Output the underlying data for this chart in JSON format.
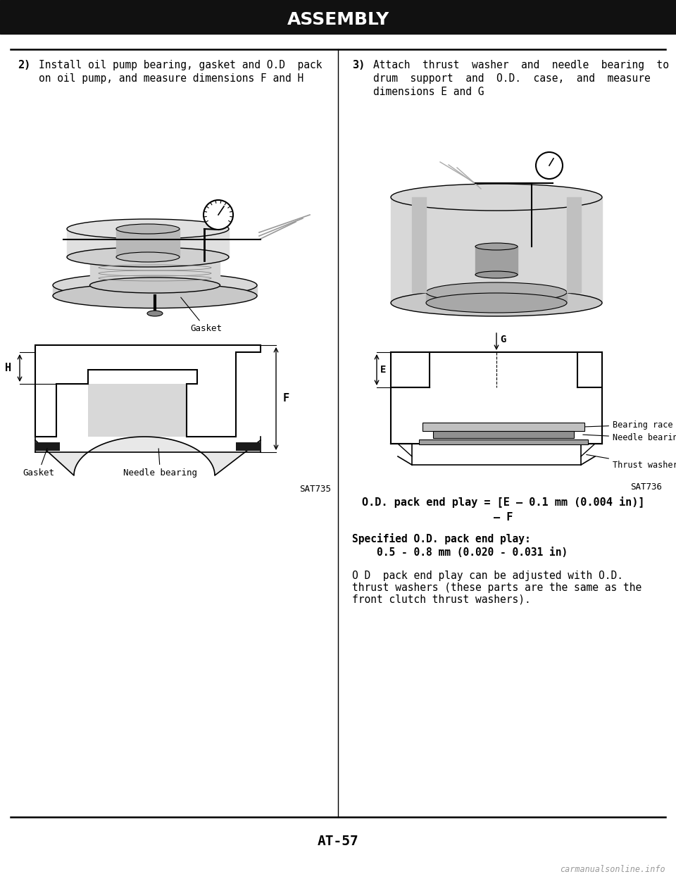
{
  "title": "ASSEMBLY",
  "page_number": "AT-57",
  "watermark": "carmanualsonline.info",
  "bg_color": "#ffffff",
  "header_bar_color": "#111111",
  "divider_color": "#000000",
  "text_color": "#000000",
  "left_step_number": "2)",
  "left_step_text_line1": "Install oil pump bearing, gasket and O.D  pack",
  "left_step_text_line2": "on oil pump, and measure dimensions F and H",
  "left_label_gasket": "Gasket",
  "left_label_needle": "Needle bearing",
  "left_label_h": "H",
  "left_label_f": "F",
  "left_diagram_ref": "SAT735",
  "right_step_number": "3)",
  "right_step_text_line1": "Attach  thrust  washer  and  needle  bearing  to",
  "right_step_text_line2": "drum  support  and  O.D.  case,  and  measure",
  "right_step_text_line3": "dimensions E and G",
  "right_label_g": "G",
  "right_label_e": "E",
  "right_label_bearing_race": "Bearing race",
  "right_label_needle_bearing": "Needle bearing",
  "right_label_thrust": "Thrust washer",
  "right_diagram_ref": "SAT736",
  "formula_line1": "O.D. pack end play = [E – 0.1 mm (0.004 in)]",
  "formula_line2": "– F",
  "specified_title": "Specified O.D. pack end play:",
  "specified_value": "0.5 - 0.8 mm (0.020 - 0.031 in)",
  "note_text_line1": "O D  pack end play can be adjusted with O.D.",
  "note_text_line2": "thrust washers (these parts are the same as the",
  "note_text_line3": "front clutch thrust washers)."
}
